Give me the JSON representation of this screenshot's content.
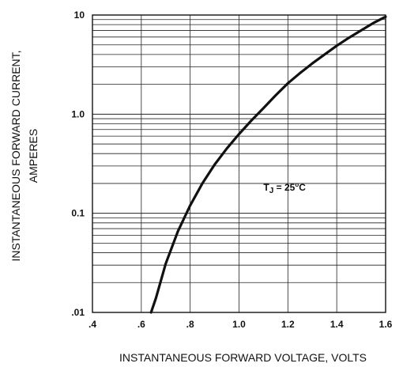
{
  "chart_data": {
    "type": "line",
    "xlabel": "INSTANTANEOUS FORWARD VOLTAGE, VOLTS",
    "ylabel_line1": "INSTANTANEOUS FORWARD CURRENT,",
    "ylabel_line2": "AMPERES",
    "xlim": [
      0.4,
      1.6
    ],
    "ylim": [
      0.01,
      10
    ],
    "y_scale": "log",
    "grid": true,
    "x_ticks": [
      0.4,
      0.6,
      0.8,
      1.0,
      1.2,
      1.4,
      1.6
    ],
    "x_tick_labels": [
      ".4",
      ".6",
      ".8",
      "1.0",
      "1.2",
      "1.4",
      "1.6"
    ],
    "y_ticks": [
      0.01,
      0.1,
      1,
      10
    ],
    "y_tick_labels": [
      ".01",
      "0.1",
      "1.0",
      "10"
    ],
    "annotation": {
      "text_main": "T",
      "text_sub": "J",
      "text_mid": " = 25",
      "text_sup": "o",
      "text_end": "C",
      "x": 1.1,
      "y": 0.17
    },
    "series": [
      {
        "x": [
          0.64,
          0.66,
          0.7,
          0.75,
          0.8,
          0.85,
          0.9,
          0.95,
          1.0,
          1.05,
          1.1,
          1.15,
          1.2,
          1.25,
          1.3,
          1.35,
          1.4,
          1.45,
          1.5,
          1.55,
          1.6
        ],
        "y": [
          0.01,
          0.014,
          0.031,
          0.066,
          0.12,
          0.2,
          0.31,
          0.45,
          0.63,
          0.86,
          1.15,
          1.55,
          2.05,
          2.6,
          3.25,
          4.0,
          4.9,
          5.9,
          7.0,
          8.3,
          9.6
        ]
      }
    ]
  }
}
